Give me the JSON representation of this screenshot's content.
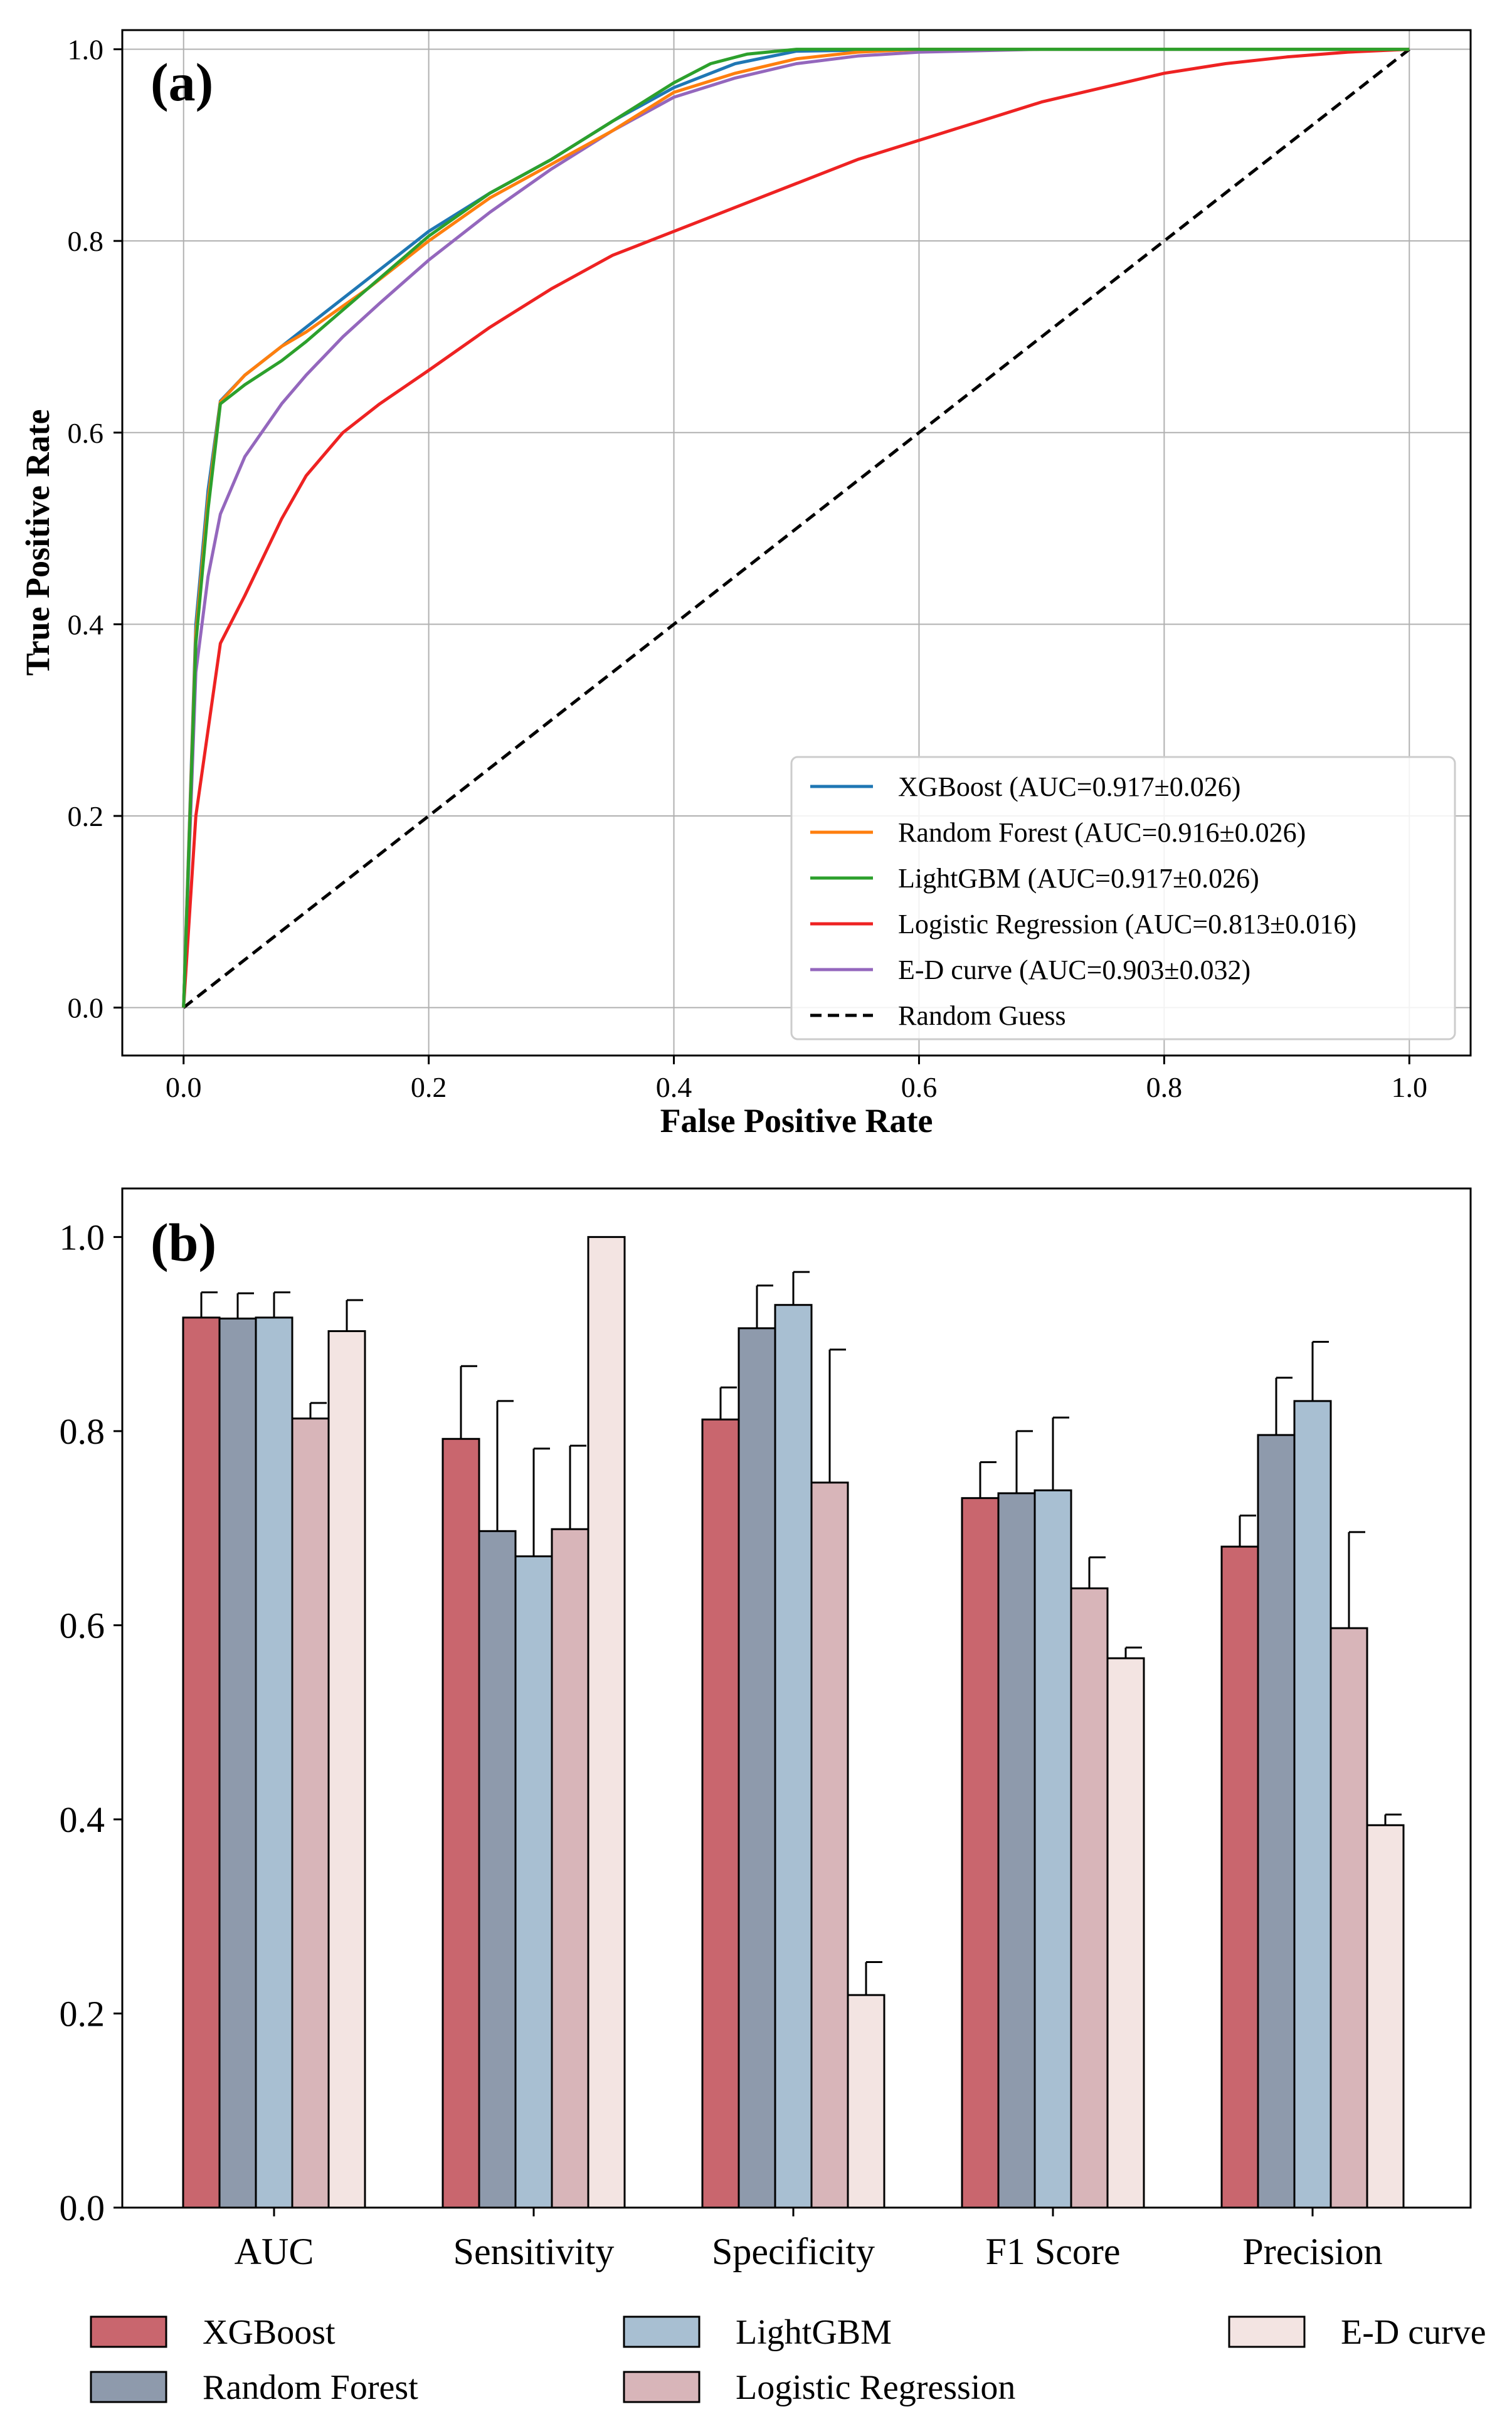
{
  "chart_data": [
    {
      "type": "line",
      "panel_label": "(a)",
      "title": "",
      "xlabel": "False Positive Rate",
      "ylabel": "True Positive Rate",
      "xlim": [
        -0.05,
        1.05
      ],
      "ylim": [
        -0.05,
        1.02
      ],
      "xticks": [
        0.0,
        0.2,
        0.4,
        0.6,
        0.8,
        1.0
      ],
      "yticks": [
        0.0,
        0.2,
        0.4,
        0.6,
        0.8,
        1.0
      ],
      "xtick_labels": [
        "0.0",
        "0.2",
        "0.4",
        "0.6",
        "0.8",
        "1.0"
      ],
      "ytick_labels": [
        "0.0",
        "0.2",
        "0.4",
        "0.6",
        "0.8",
        "1.0"
      ],
      "grid": true,
      "legend_position": "lower-right",
      "series": [
        {
          "name": "XGBoost (AUC=0.917±0.026)",
          "color": "#1f77b4",
          "style": "solid",
          "x": [
            0,
            0.01,
            0.02,
            0.03,
            0.05,
            0.08,
            0.1,
            0.15,
            0.2,
            0.25,
            0.3,
            0.35,
            0.4,
            0.45,
            0.5,
            0.6,
            0.8,
            1.0
          ],
          "y": [
            0,
            0.4,
            0.54,
            0.633,
            0.66,
            0.69,
            0.71,
            0.76,
            0.81,
            0.85,
            0.885,
            0.925,
            0.96,
            0.985,
            0.998,
            1.0,
            1.0,
            1.0
          ]
        },
        {
          "name": "Random Forest (AUC=0.916±0.026)",
          "color": "#ff7f0e",
          "style": "solid",
          "x": [
            0,
            0.01,
            0.02,
            0.03,
            0.05,
            0.08,
            0.1,
            0.15,
            0.2,
            0.25,
            0.3,
            0.35,
            0.4,
            0.45,
            0.5,
            0.55,
            0.6,
            0.8,
            1.0
          ],
          "y": [
            0,
            0.39,
            0.53,
            0.632,
            0.66,
            0.69,
            0.705,
            0.75,
            0.8,
            0.845,
            0.88,
            0.915,
            0.955,
            0.975,
            0.99,
            0.997,
            1.0,
            1.0,
            1.0
          ]
        },
        {
          "name": "LightGBM (AUC=0.917±0.026)",
          "color": "#2ca02c",
          "style": "solid",
          "x": [
            0,
            0.01,
            0.02,
            0.03,
            0.05,
            0.08,
            0.1,
            0.15,
            0.2,
            0.25,
            0.3,
            0.35,
            0.4,
            0.43,
            0.46,
            0.5,
            0.6,
            0.8,
            1.0
          ],
          "y": [
            0,
            0.38,
            0.52,
            0.63,
            0.65,
            0.675,
            0.695,
            0.75,
            0.805,
            0.85,
            0.885,
            0.925,
            0.965,
            0.985,
            0.995,
            1.0,
            1.0,
            1.0,
            1.0
          ]
        },
        {
          "name": "Logistic Regression (AUC=0.813±0.016)",
          "color": "#ee2222",
          "style": "solid",
          "x": [
            0,
            0.01,
            0.03,
            0.05,
            0.08,
            0.1,
            0.13,
            0.16,
            0.2,
            0.25,
            0.3,
            0.35,
            0.4,
            0.45,
            0.5,
            0.55,
            0.6,
            0.65,
            0.7,
            0.75,
            0.8,
            0.85,
            0.9,
            0.95,
            1.0
          ],
          "y": [
            0,
            0.2,
            0.38,
            0.43,
            0.51,
            0.555,
            0.6,
            0.63,
            0.665,
            0.71,
            0.75,
            0.785,
            0.81,
            0.835,
            0.86,
            0.885,
            0.905,
            0.925,
            0.945,
            0.96,
            0.975,
            0.985,
            0.992,
            0.997,
            1.0
          ]
        },
        {
          "name": "E-D curve (AUC=0.903±0.032)",
          "color": "#9467bd",
          "style": "solid",
          "x": [
            0,
            0.01,
            0.02,
            0.03,
            0.05,
            0.08,
            0.1,
            0.13,
            0.16,
            0.2,
            0.25,
            0.3,
            0.35,
            0.4,
            0.45,
            0.5,
            0.55,
            0.6,
            0.7,
            0.8,
            1.0
          ],
          "y": [
            0,
            0.35,
            0.45,
            0.515,
            0.575,
            0.63,
            0.66,
            0.7,
            0.735,
            0.78,
            0.83,
            0.875,
            0.915,
            0.95,
            0.97,
            0.985,
            0.993,
            0.997,
            1.0,
            1.0,
            1.0
          ]
        },
        {
          "name": "Random Guess",
          "color": "#000000",
          "style": "dashed",
          "x": [
            0,
            1
          ],
          "y": [
            0,
            1
          ]
        }
      ]
    },
    {
      "type": "bar",
      "panel_label": "(b)",
      "title": "",
      "xlabel": "",
      "ylabel": "",
      "ylim": [
        0.0,
        1.05
      ],
      "yticks": [
        0.0,
        0.2,
        0.4,
        0.6,
        0.8,
        1.0
      ],
      "ytick_labels": [
        "0.0",
        "0.2",
        "0.4",
        "0.6",
        "0.8",
        "1.0"
      ],
      "grid": false,
      "legend_position": "bottom",
      "categories": [
        "AUC",
        "Sensitivity",
        "Specificity",
        "F1 Score",
        "Precision"
      ],
      "series": [
        {
          "name": "XGBoost",
          "color": "#c9666e",
          "values": [
            0.917,
            0.792,
            0.812,
            0.731,
            0.681
          ],
          "errors": [
            0.026,
            0.075,
            0.033,
            0.037,
            0.032
          ]
        },
        {
          "name": "Random Forest",
          "color": "#8e9aac",
          "values": [
            0.916,
            0.697,
            0.906,
            0.736,
            0.796
          ],
          "errors": [
            0.026,
            0.134,
            0.044,
            0.064,
            0.059
          ]
        },
        {
          "name": "LightGBM",
          "color": "#a8bfd2",
          "values": [
            0.917,
            0.671,
            0.93,
            0.739,
            0.831
          ],
          "errors": [
            0.026,
            0.111,
            0.034,
            0.075,
            0.061
          ]
        },
        {
          "name": "Logistic Regression",
          "color": "#d8b5b9",
          "values": [
            0.813,
            0.699,
            0.747,
            0.638,
            0.597
          ],
          "errors": [
            0.016,
            0.086,
            0.137,
            0.032,
            0.099
          ]
        },
        {
          "name": "E-D curve",
          "color": "#f3e4e2",
          "values": [
            0.903,
            1.0,
            0.219,
            0.566,
            0.394
          ],
          "errors": [
            0.032,
            0.0,
            0.034,
            0.011,
            0.011
          ]
        }
      ]
    }
  ]
}
